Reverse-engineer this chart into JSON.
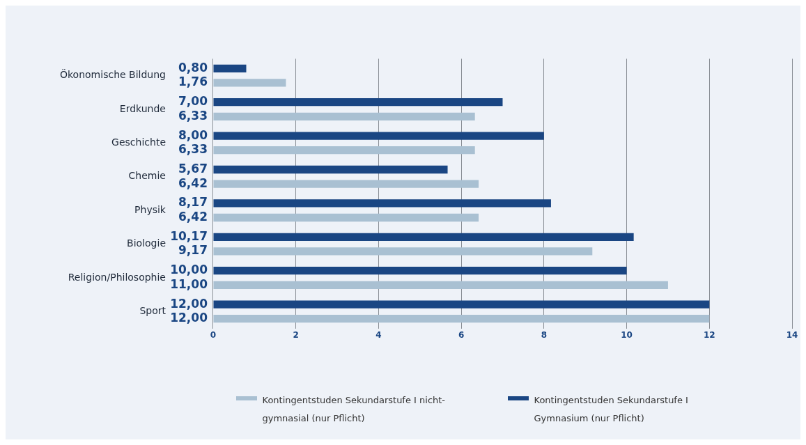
{
  "chart_data": {
    "type": "bar",
    "orientation": "horizontal",
    "categories": [
      "Ökonomische Bildung",
      "Erdkunde",
      "Geschichte",
      "Chemie",
      "Physik",
      "Biologie",
      "Religion/Philosophie",
      "Sport"
    ],
    "series": [
      {
        "name": "Kontingentstuden Sekundarstufe I Gymnasium (nur Pflicht)",
        "color": "#1a4683",
        "values": [
          0.8,
          7.0,
          8.0,
          5.67,
          8.17,
          10.17,
          10.0,
          12.0
        ],
        "value_labels": [
          "0,80",
          "7,00",
          "8,00",
          "5,67",
          "8,17",
          "10,17",
          "10,00",
          "12,00"
        ]
      },
      {
        "name": "Kontingentstuden Sekundarstufe I nicht-gymnasial (nur Pflicht)",
        "color": "#a9c0d2",
        "values": [
          1.76,
          6.33,
          6.33,
          6.42,
          6.42,
          9.17,
          11.0,
          12.0
        ],
        "value_labels": [
          "1,76",
          "6,33",
          "6,33",
          "6,42",
          "6,42",
          "9,17",
          "11,00",
          "12,00"
        ]
      }
    ],
    "xlim": [
      0,
      14
    ],
    "xticks": [
      0,
      2,
      4,
      6,
      8,
      10,
      12,
      14
    ],
    "grid": "x",
    "legend": "bottom"
  }
}
